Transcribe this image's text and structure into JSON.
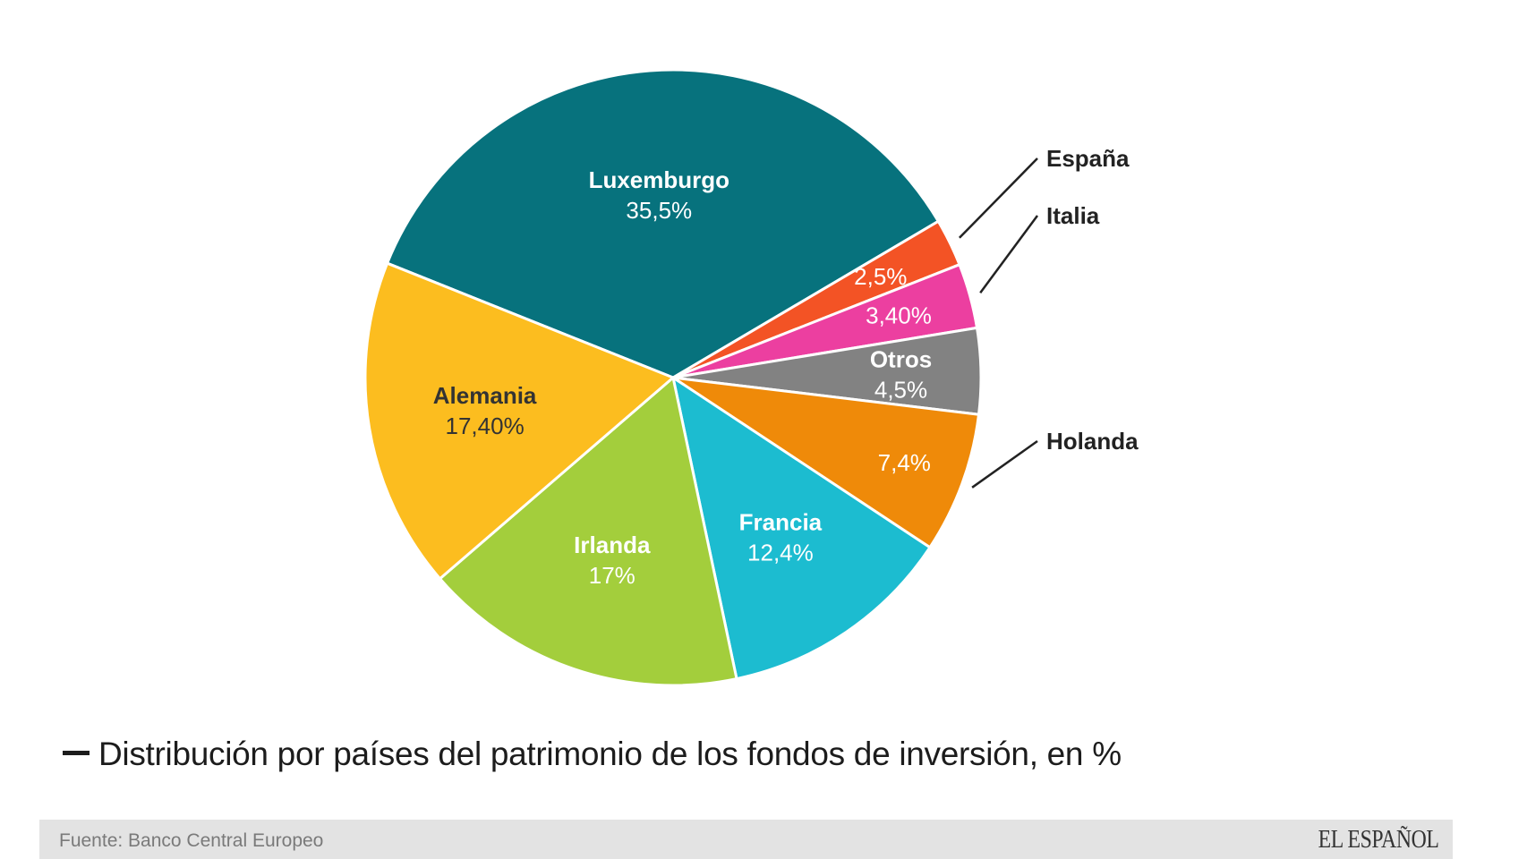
{
  "chart_data": {
    "type": "pie",
    "title": "Distribución por países del patrimonio de los fondos de inversión, en %",
    "source": "Fuente: Banco Central Europeo",
    "slices": [
      {
        "name": "Luxemburgo",
        "value_label": "35,5%",
        "value": 35.5,
        "color": "#07727d",
        "label_color": "#ffffff",
        "label_position": "inside"
      },
      {
        "name": "España",
        "value_label": "2,5%",
        "value": 2.5,
        "color": "#f35325",
        "label_color": "#ffffff",
        "label_position": "outside"
      },
      {
        "name": "Italia",
        "value_label": "3,40%",
        "value": 3.4,
        "color": "#ec3fa0",
        "label_color": "#ffffff",
        "label_position": "outside"
      },
      {
        "name": "Otros",
        "value_label": "4,5%",
        "value": 4.5,
        "color": "#828282",
        "label_color": "#ffffff",
        "label_position": "inside"
      },
      {
        "name": "Holanda",
        "value_label": "7,4%",
        "value": 7.4,
        "color": "#ef8a09",
        "label_color": "#ffffff",
        "label_position": "outside"
      },
      {
        "name": "Francia",
        "value_label": "12,4%",
        "value": 12.4,
        "color": "#1cbcd0",
        "label_color": "#ffffff",
        "label_position": "inside"
      },
      {
        "name": "Irlanda",
        "value_label": "17%",
        "value": 17,
        "color": "#a3ce3c",
        "label_color": "#ffffff",
        "label_position": "inside"
      },
      {
        "name": "Alemania",
        "value_label": "17,40%",
        "value": 17.4,
        "color": "#fcbd1f",
        "label_color": "#333333",
        "label_position": "inside"
      }
    ]
  },
  "footer": {
    "source": "Fuente: Banco Central Europeo",
    "brand": "EL ESPAÑOL"
  }
}
